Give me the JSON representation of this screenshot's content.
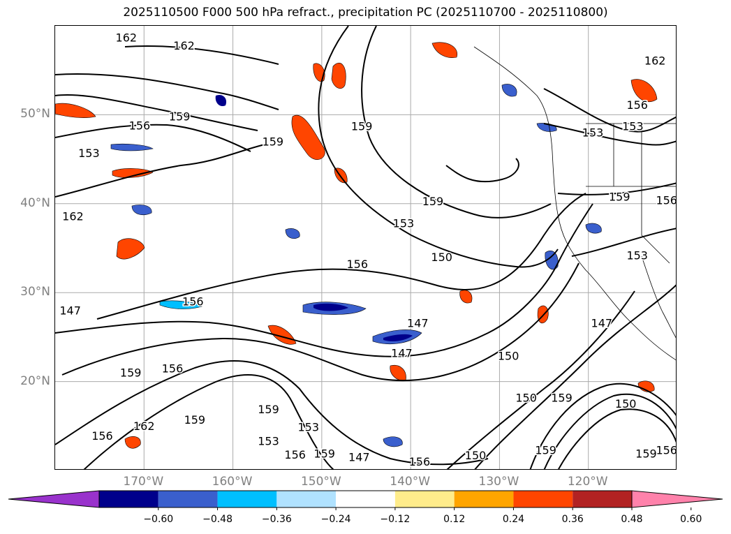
{
  "title": "2025110500 F000 500 hPa refract., precipitation PC (2025110700 - 2025110800)",
  "map": {
    "lat_labels": [
      {
        "label": "50°N",
        "lat": 50
      },
      {
        "label": "40°N",
        "lat": 40
      },
      {
        "label": "30°N",
        "lat": 30
      },
      {
        "label": "20°N",
        "lat": 20
      }
    ],
    "lon_labels": [
      {
        "label": "170°W",
        "lon": -170
      },
      {
        "label": "160°W",
        "lon": -160
      },
      {
        "label": "150°W",
        "lon": -150
      },
      {
        "label": "140°W",
        "lon": -140
      },
      {
        "label": "130°W",
        "lon": -130
      },
      {
        "label": "120°W",
        "lon": -120
      }
    ],
    "extent": {
      "lon_min": -180,
      "lon_max": -110,
      "lat_min": 10,
      "lat_max": 60
    },
    "gridlines": true,
    "contour_labels": [
      {
        "text": "162",
        "lon": -178,
        "lat": 38.5
      },
      {
        "text": "162",
        "lon": -172,
        "lat": 58.6
      },
      {
        "text": "162",
        "lon": -165.5,
        "lat": 57.7
      },
      {
        "text": "159",
        "lon": -166,
        "lat": 49.7
      },
      {
        "text": "156",
        "lon": -170.5,
        "lat": 48.7
      },
      {
        "text": "153",
        "lon": -176.2,
        "lat": 45.6
      },
      {
        "text": "159",
        "lon": -155.5,
        "lat": 46.9
      },
      {
        "text": "159",
        "lon": -145.5,
        "lat": 48.6
      },
      {
        "text": "159",
        "lon": -137.5,
        "lat": 40.2
      },
      {
        "text": "153",
        "lon": -140.8,
        "lat": 37.7
      },
      {
        "text": "150",
        "lon": -136.5,
        "lat": 33.9
      },
      {
        "text": "156",
        "lon": -146,
        "lat": 33.1
      },
      {
        "text": "156",
        "lon": -164.5,
        "lat": 28.9
      },
      {
        "text": "147",
        "lon": -178.3,
        "lat": 27.9
      },
      {
        "text": "147",
        "lon": -139.2,
        "lat": 26.5
      },
      {
        "text": "147",
        "lon": -141,
        "lat": 23.1
      },
      {
        "text": "150",
        "lon": -129,
        "lat": 22.8
      },
      {
        "text": "150",
        "lon": -127,
        "lat": 18.1
      },
      {
        "text": "147",
        "lon": -118.5,
        "lat": 26.5
      },
      {
        "text": "159",
        "lon": -171.5,
        "lat": 20.9
      },
      {
        "text": "156",
        "lon": -166.8,
        "lat": 21.4
      },
      {
        "text": "162",
        "lon": -170,
        "lat": 14.9
      },
      {
        "text": "159",
        "lon": -164.3,
        "lat": 15.6
      },
      {
        "text": "159",
        "lon": -156,
        "lat": 16.8
      },
      {
        "text": "153",
        "lon": -151.5,
        "lat": 14.8
      },
      {
        "text": "156",
        "lon": -174.7,
        "lat": 13.8
      },
      {
        "text": "153",
        "lon": -156,
        "lat": 13.2
      },
      {
        "text": "156",
        "lon": -153,
        "lat": 11.7
      },
      {
        "text": "159",
        "lon": -149.7,
        "lat": 11.8
      },
      {
        "text": "147",
        "lon": -145.8,
        "lat": 11.4
      },
      {
        "text": "156",
        "lon": -139,
        "lat": 10.9
      },
      {
        "text": "150",
        "lon": -132.7,
        "lat": 11.6
      },
      {
        "text": "159",
        "lon": -123,
        "lat": 18.1
      },
      {
        "text": "159",
        "lon": -124.8,
        "lat": 12.2
      },
      {
        "text": "150",
        "lon": -115.8,
        "lat": 17.4
      },
      {
        "text": "159",
        "lon": -113.5,
        "lat": 11.8
      },
      {
        "text": "156",
        "lon": -111.2,
        "lat": 12.2
      },
      {
        "text": "162",
        "lon": -112.5,
        "lat": 56
      },
      {
        "text": "156",
        "lon": -114.5,
        "lat": 51
      },
      {
        "text": "153",
        "lon": -119.5,
        "lat": 47.9
      },
      {
        "text": "153",
        "lon": -115,
        "lat": 48.6
      },
      {
        "text": "159",
        "lon": -116.5,
        "lat": 40.7
      },
      {
        "text": "156",
        "lon": -111.2,
        "lat": 40.3
      },
      {
        "text": "153",
        "lon": -114.5,
        "lat": 34.1
      }
    ]
  },
  "colorbar": {
    "colors": [
      "#9932cc",
      "#00008b",
      "#3a5fcd",
      "#00bfff",
      "#b0e2ff",
      "#ffffff",
      "#ffec8b",
      "#ffa500",
      "#ff4500",
      "#b22222",
      "#ff82ab"
    ],
    "ticks": [
      "−0.60",
      "−0.48",
      "−0.36",
      "−0.24",
      "−0.12",
      "0.12",
      "0.24",
      "0.36",
      "0.48",
      "0.60"
    ]
  }
}
